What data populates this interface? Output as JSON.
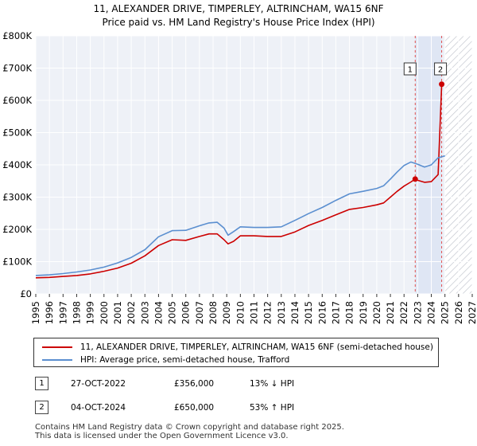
{
  "chart_data": {
    "type": "line",
    "title": "11, ALEXANDER DRIVE, TIMPERLEY, ALTRINCHAM, WA15 6NF",
    "subtitle": "Price paid vs. HM Land Registry's House Price Index (HPI)",
    "xlabel": "",
    "ylabel": "",
    "xlim": [
      1995,
      2027
    ],
    "ylim": [
      0,
      800000
    ],
    "x_ticks": [
      "1995",
      "1996",
      "1997",
      "1998",
      "1999",
      "2000",
      "2001",
      "2002",
      "2003",
      "2004",
      "2005",
      "2006",
      "2007",
      "2008",
      "2009",
      "2010",
      "2011",
      "2012",
      "2013",
      "2014",
      "2015",
      "2016",
      "2017",
      "2018",
      "2019",
      "2020",
      "2021",
      "2022",
      "2023",
      "2024",
      "2025",
      "2026",
      "2027"
    ],
    "y_ticks": [
      {
        "value": 0,
        "label": "£0"
      },
      {
        "value": 100000,
        "label": "£100K"
      },
      {
        "value": 200000,
        "label": "£200K"
      },
      {
        "value": 300000,
        "label": "£300K"
      },
      {
        "value": 400000,
        "label": "£400K"
      },
      {
        "value": 500000,
        "label": "£500K"
      },
      {
        "value": 600000,
        "label": "£600K"
      },
      {
        "value": 700000,
        "label": "£700K"
      },
      {
        "value": 800000,
        "label": "£800K"
      }
    ],
    "grid": true,
    "shaded_range": [
      2022.82,
      2024.76
    ],
    "hatched_from": 2025.0,
    "series": [
      {
        "name": "11, ALEXANDER DRIVE, TIMPERLEY, ALTRINCHAM, WA15 6NF (semi-detached house)",
        "color": "#cc0000",
        "x": [
          1995,
          1996,
          1997,
          1998,
          1999,
          2000,
          2001,
          2002,
          2003,
          2004,
          2005,
          2006,
          2007,
          2007.7,
          2008.3,
          2008.8,
          2009.1,
          2009.5,
          2010,
          2011,
          2012,
          2013,
          2014,
          2015,
          2016,
          2017,
          2018,
          2019,
          2020,
          2020.5,
          2021,
          2021.5,
          2022,
          2022.5,
          2022.82,
          2023,
          2023.5,
          2024,
          2024.5,
          2024.76
        ],
        "values": [
          50000,
          51000,
          54000,
          57000,
          62000,
          70000,
          80000,
          95000,
          118000,
          150000,
          168000,
          166000,
          178000,
          186000,
          186000,
          168000,
          155000,
          163000,
          180000,
          180000,
          178000,
          178000,
          192000,
          212000,
          228000,
          245000,
          262000,
          268000,
          276000,
          282000,
          300000,
          318000,
          334000,
          347000,
          356000,
          352000,
          346000,
          348000,
          370000,
          650000
        ]
      },
      {
        "name": "HPI: Average price, semi-detached house, Trafford",
        "color": "#5b8fd0",
        "x": [
          1995,
          1996,
          1997,
          1998,
          1999,
          2000,
          2001,
          2002,
          2003,
          2004,
          2005,
          2006,
          2007,
          2007.7,
          2008.3,
          2008.8,
          2009.1,
          2009.5,
          2010,
          2011,
          2012,
          2013,
          2014,
          2015,
          2016,
          2017,
          2018,
          2019,
          2020,
          2020.5,
          2021,
          2021.5,
          2022,
          2022.5,
          2023,
          2023.5,
          2024,
          2024.5,
          2025
        ],
        "values": [
          57000,
          59000,
          63000,
          68000,
          74000,
          83000,
          96000,
          113000,
          137000,
          177000,
          196000,
          197000,
          211000,
          220000,
          222000,
          204000,
          182000,
          193000,
          208000,
          206000,
          206000,
          208000,
          228000,
          249000,
          268000,
          290000,
          310000,
          318000,
          327000,
          335000,
          356000,
          378000,
          398000,
          409000,
          402000,
          393000,
          400000,
          422000,
          428000
        ]
      }
    ],
    "annotations": [
      {
        "label": "1",
        "x": 2022.82,
        "value": 356000
      },
      {
        "label": "2",
        "x": 2024.76,
        "value": 650000
      }
    ],
    "legend": [
      {
        "label": "11, ALEXANDER DRIVE, TIMPERLEY, ALTRINCHAM, WA15 6NF (semi-detached house)",
        "color": "#cc0000"
      },
      {
        "label": "HPI: Average price, semi-detached house, Trafford",
        "color": "#5b8fd0"
      }
    ],
    "legend_position": "below"
  },
  "sales": [
    {
      "badge": "1",
      "date": "27-OCT-2022",
      "price": "£356,000",
      "hpi": "13% ↓ HPI"
    },
    {
      "badge": "2",
      "date": "04-OCT-2024",
      "price": "£650,000",
      "hpi": "53% ↑ HPI"
    }
  ],
  "footer": {
    "line1": "Contains HM Land Registry data © Crown copyright and database right 2025.",
    "line2": "This data is licensed under the Open Government Licence v3.0."
  }
}
